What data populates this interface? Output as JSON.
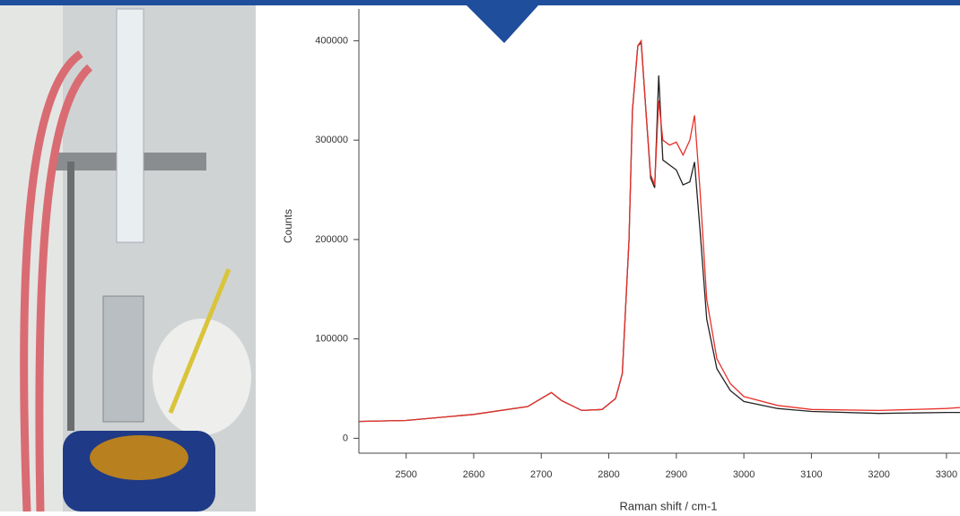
{
  "chart_data": {
    "type": "line",
    "x_label": "Raman shift / cm-1",
    "y_label": "Counts",
    "x": [
      2430,
      2500,
      2600,
      2680,
      2700,
      2715,
      2730,
      2760,
      2790,
      2810,
      2820,
      2830,
      2835,
      2843,
      2848,
      2855,
      2862,
      2868,
      2874,
      2880,
      2890,
      2900,
      2910,
      2920,
      2927,
      2935,
      2945,
      2960,
      2980,
      3000,
      3050,
      3100,
      3200,
      3300,
      3320
    ],
    "series": [
      {
        "color": "#222222",
        "values": [
          17000,
          18000,
          24000,
          32000,
          40000,
          46000,
          38000,
          28000,
          29000,
          40000,
          65000,
          200000,
          330000,
          395000,
          398000,
          330000,
          262000,
          252000,
          365000,
          280000,
          275000,
          270000,
          255000,
          258000,
          278000,
          210000,
          120000,
          70000,
          48000,
          37000,
          30000,
          27000,
          25000,
          26000,
          26000
        ]
      },
      {
        "color": "#e8302a",
        "values": [
          17000,
          18000,
          24000,
          32000,
          40000,
          46000,
          38000,
          28000,
          29000,
          40000,
          65000,
          200000,
          330000,
          395000,
          400000,
          330000,
          265000,
          255000,
          340000,
          300000,
          295000,
          298000,
          285000,
          300000,
          325000,
          250000,
          140000,
          80000,
          55000,
          42000,
          33000,
          29000,
          28000,
          30000,
          31000
        ]
      }
    ],
    "xlim": [
      2430,
      3320
    ],
    "ylim": [
      -15000,
      432000
    ],
    "xticks": [
      2500,
      2600,
      2700,
      2800,
      2900,
      3000,
      3100,
      3200,
      3300
    ],
    "yticks": [
      0,
      100000,
      200000,
      300000,
      400000
    ]
  }
}
